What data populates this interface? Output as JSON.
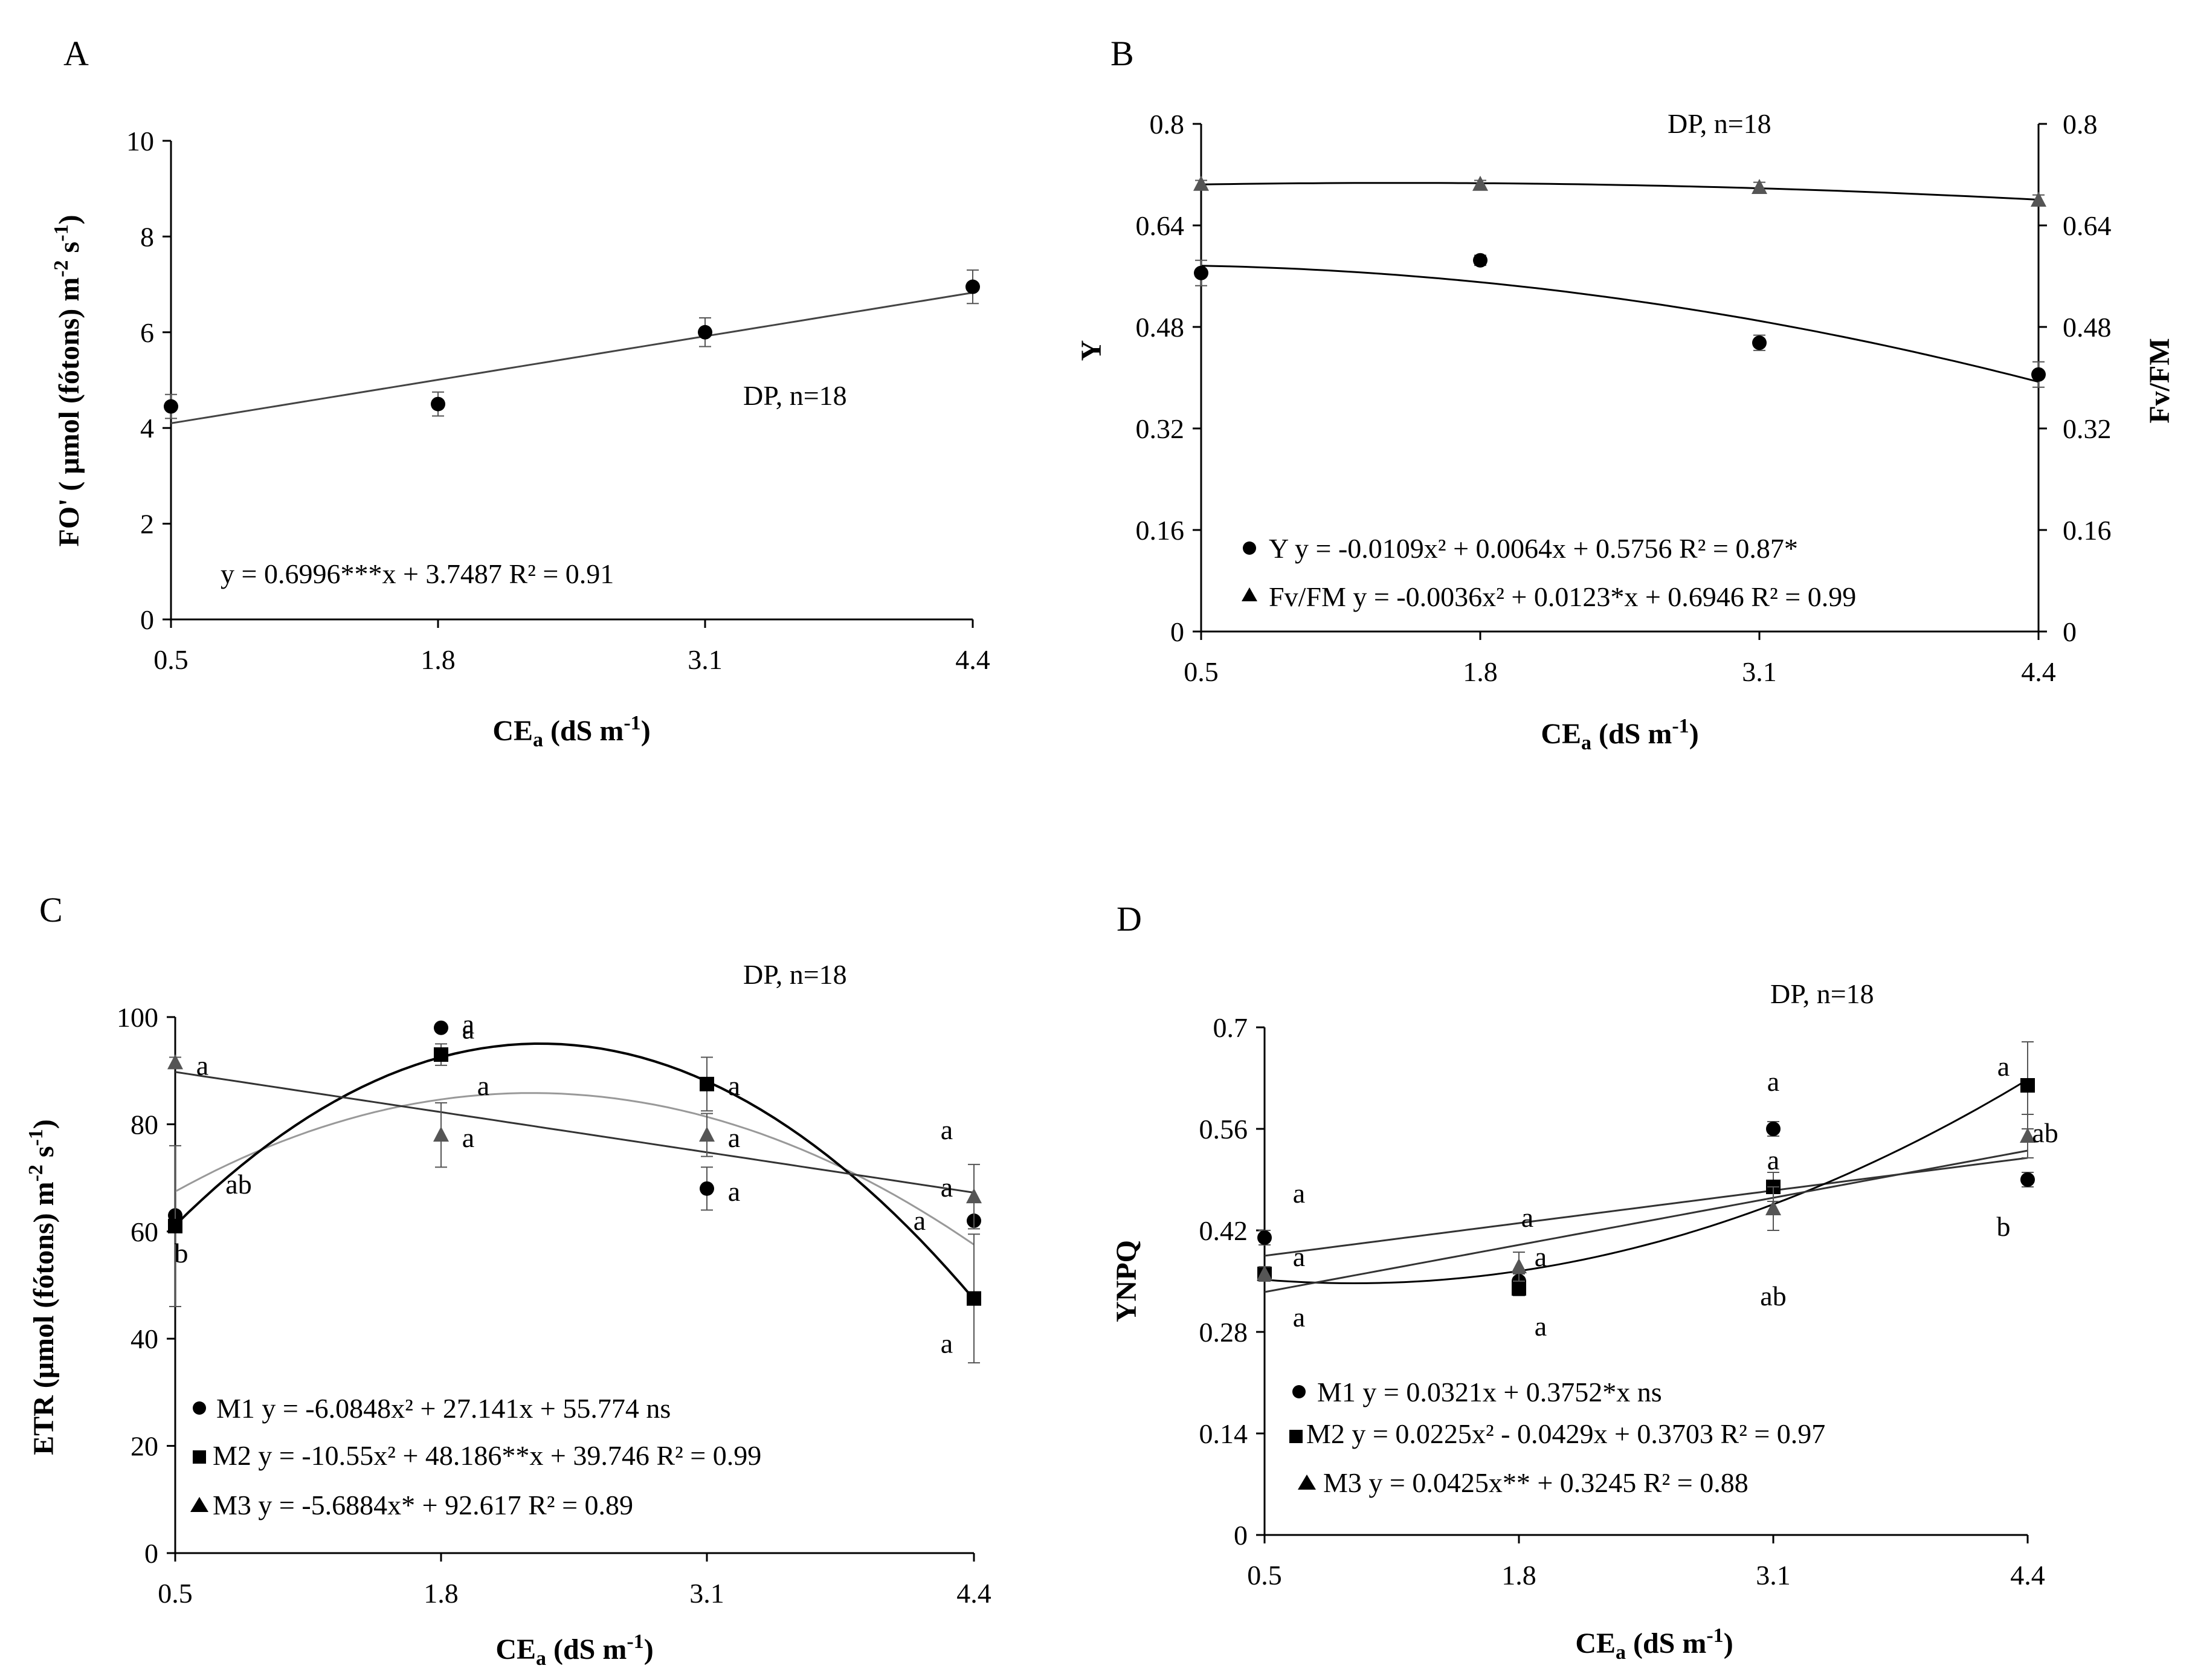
{
  "chart_data": [
    {
      "panel": "A",
      "type": "scatter",
      "ylabel": "FO' ( μmol (fótons) m-2 s-1)",
      "ylabel_parts": {
        "main": "FO' ( μmol (fótons) m",
        "s1": "-2",
        "mid": " s",
        "s2": "-1",
        "end": ")"
      },
      "xlabel_parts": {
        "main": "CE",
        "sub": "a",
        "rest": " (dS m",
        "sup": "-1",
        "end": ")"
      },
      "x": [
        0.5,
        1.8,
        3.1,
        4.4
      ],
      "x_ticks": [
        "0.5",
        "1.8",
        "3.1",
        "4.4"
      ],
      "ylim": [
        0,
        10
      ],
      "y_ticks": [
        "0",
        "2",
        "4",
        "6",
        "8",
        "10"
      ],
      "series": [
        {
          "name": "FO'",
          "marker": "circle",
          "values": [
            4.45,
            4.5,
            6.0,
            6.95
          ],
          "errors": [
            0.25,
            0.25,
            0.3,
            0.35
          ]
        }
      ],
      "fit": {
        "type": "linear",
        "a": 0.6996,
        "b": 3.7487
      },
      "annotation": "DP, n=18",
      "equation": "y = 0.6996***x + 3.7487 R² = 0.91"
    },
    {
      "panel": "B",
      "type": "scatter",
      "ylabel": "Y",
      "ylabel_right": "Fv/FM",
      "xlabel_parts": {
        "main": "CE",
        "sub": "a",
        "rest": " (dS m",
        "sup": "-1",
        "end": ")"
      },
      "x": [
        0.5,
        1.8,
        3.1,
        4.4
      ],
      "x_ticks": [
        "0.5",
        "1.8",
        "3.1",
        "4.4"
      ],
      "ylim": [
        0,
        0.8
      ],
      "y_ticks": [
        "0",
        "0.16",
        "0.32",
        "0.48",
        "0.64",
        "0.8"
      ],
      "series": [
        {
          "name": "Y",
          "marker": "circle",
          "values": [
            0.565,
            0.585,
            0.455,
            0.405
          ],
          "errors": [
            0.02,
            0.008,
            0.012,
            0.02
          ],
          "legend": "Y y = -0.0109x² + 0.0064x + 0.5756 R² = 0.87*"
        },
        {
          "name": "Fv/FM",
          "marker": "triangle",
          "values": [
            0.705,
            0.705,
            0.7,
            0.68
          ],
          "errors": [
            0.006,
            0.006,
            0.008,
            0.008
          ],
          "legend": "Fv/FM y = -0.0036x² + 0.0123*x + 0.6946 R² = 0.99"
        }
      ],
      "annotation": "DP, n=18"
    },
    {
      "panel": "C",
      "type": "scatter",
      "ylabel_parts": {
        "main": "ETR (μmol (fótons) m",
        "s1": "-2",
        "mid": " s",
        "s2": "-1",
        "end": ")"
      },
      "xlabel_parts": {
        "main": "CE",
        "sub": "a",
        "rest": " (dS m",
        "sup": "-1",
        "end": ")"
      },
      "x": [
        0.5,
        1.8,
        3.1,
        4.4
      ],
      "x_ticks": [
        "0.5",
        "1.8",
        "3.1",
        "4.4"
      ],
      "ylim": [
        0,
        100
      ],
      "y_ticks": [
        "0",
        "20",
        "40",
        "60",
        "80",
        "100"
      ],
      "series": [
        {
          "name": "M1",
          "marker": "circle",
          "values": [
            63,
            98,
            68,
            62
          ],
          "errors": [
            0,
            0,
            4,
            0
          ],
          "letters": [
            "",
            "a",
            "a",
            "a"
          ],
          "legend": "M1 y = -6.0848x² + 27.141x + 55.774 ns"
        },
        {
          "name": "M2",
          "marker": "square",
          "values": [
            61,
            93,
            87.5,
            47.5
          ],
          "errors": [
            15,
            2,
            5,
            12
          ],
          "letters": [
            "b",
            "a",
            "a",
            "a"
          ],
          "legend": "M2 y = -10.55x² + 48.186**x + 39.746  R² = 0.99"
        },
        {
          "name": "M3",
          "marker": "triangle",
          "values": [
            91.5,
            78,
            78,
            66.5
          ],
          "errors": [
            1,
            6,
            4,
            6
          ],
          "letters": [
            "a",
            "a",
            "a",
            "a"
          ],
          "legend": "M3 y = -5.6884x* + 92.617  R² = 0.89"
        }
      ],
      "extra_letters": [
        "ab",
        "a",
        "a"
      ],
      "annotation": "DP, n=18"
    },
    {
      "panel": "D",
      "type": "scatter",
      "ylabel": "YNPQ",
      "xlabel_parts": {
        "main": "CE",
        "sub": "a",
        "rest": " (dS m",
        "sup": "-1",
        "end": ")"
      },
      "x": [
        0.5,
        1.8,
        3.1,
        4.4
      ],
      "x_ticks": [
        "0.5",
        "1.8",
        "3.1",
        "4.4"
      ],
      "ylim": [
        0,
        0.7
      ],
      "y_ticks": [
        "0",
        "0.14",
        "0.28",
        "0.42",
        "0.56",
        "0.7"
      ],
      "series": [
        {
          "name": "M1",
          "marker": "circle",
          "values": [
            0.41,
            0.35,
            0.56,
            0.49
          ],
          "errors": [
            0.01,
            0.01,
            0.01,
            0.01
          ],
          "legend": "M1 y = 0.0321x + 0.3752*x ns"
        },
        {
          "name": "M2",
          "marker": "square",
          "values": [
            0.36,
            0.34,
            0.48,
            0.62
          ],
          "errors": [
            0.01,
            0.01,
            0.02,
            0.06
          ],
          "legend": "M2 y = 0.0225x² - 0.0429x + 0.3703 R² = 0.97"
        },
        {
          "name": "M3",
          "marker": "triangle",
          "values": [
            0.36,
            0.37,
            0.45,
            0.55
          ],
          "errors": [
            0.01,
            0.02,
            0.03,
            0.03
          ],
          "legend": "M3 y = 0.0425x** + 0.3245 R² = 0.88"
        }
      ],
      "letters": [
        "a",
        "a",
        "a",
        "a",
        "a",
        "a",
        "a",
        "a",
        "ab",
        "a",
        "ab",
        "b"
      ],
      "annotation": "DP, n=18"
    }
  ]
}
